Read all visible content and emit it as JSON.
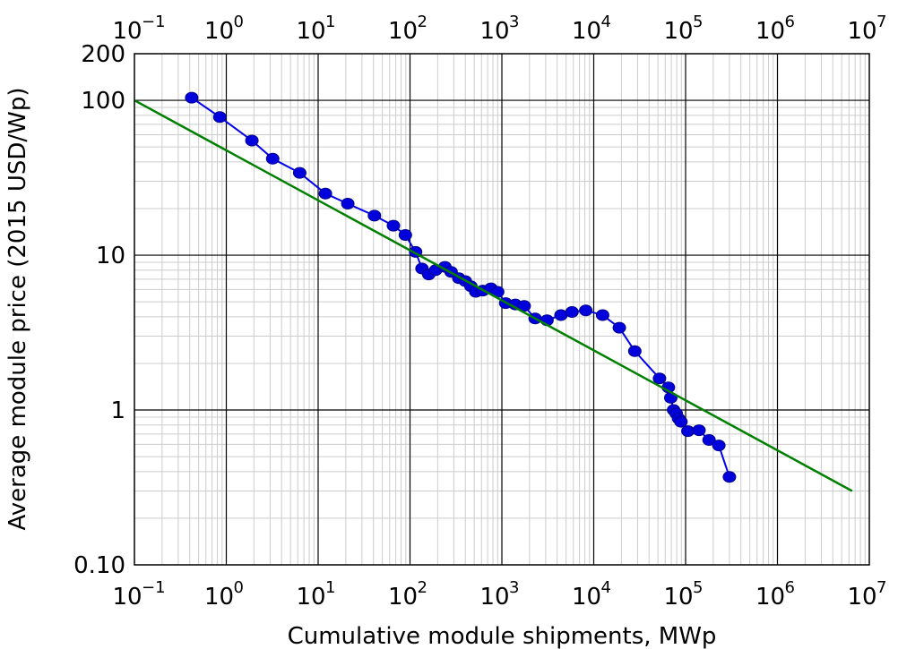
{
  "chart_data": {
    "type": "scatter",
    "title": "",
    "xlabel": "Cumulative module shipments, MWp",
    "ylabel": "Average module price (2015 USD/Wp)",
    "x_scale": "log",
    "y_scale": "log",
    "xlim": [
      0.1,
      10000000
    ],
    "ylim": [
      0.1,
      200
    ],
    "x_tick_exponents": [
      "−1",
      "0",
      "1",
      "2",
      "3",
      "4",
      "5",
      "6",
      "7"
    ],
    "x_tick_values": [
      0.1,
      1,
      10,
      100,
      1000,
      10000,
      100000,
      1000000,
      10000000
    ],
    "y_ticks": [
      {
        "value": 0.1,
        "label": "0.10"
      },
      {
        "value": 1,
        "label": "1"
      },
      {
        "value": 10,
        "label": "10"
      },
      {
        "value": 100,
        "label": "100"
      },
      {
        "value": 200,
        "label": "200"
      }
    ],
    "grid": true,
    "legend": "none",
    "series": [
      {
        "kind": "line+markers",
        "color": "#0000ee",
        "marker_color": "#0000dd",
        "x": [
          0.42,
          0.85,
          1.9,
          3.2,
          6.3,
          12,
          21,
          41,
          66,
          89,
          115,
          135,
          160,
          190,
          240,
          280,
          340,
          400,
          460,
          520,
          620,
          760,
          900,
          1100,
          1400,
          1750,
          2300,
          3100,
          4400,
          5800,
          8200,
          12500,
          19000,
          28000,
          52000,
          65000,
          69000,
          74000,
          79000,
          84000,
          89000,
          106000,
          140000,
          180000,
          230000,
          300000
        ],
        "y": [
          104,
          78,
          55,
          42,
          34,
          25,
          21.5,
          18,
          15.5,
          13.5,
          10.5,
          8.2,
          7.5,
          8,
          8.4,
          7.8,
          7.1,
          6.8,
          6.3,
          5.8,
          5.9,
          6.1,
          5.8,
          4.9,
          4.8,
          4.7,
          3.9,
          3.8,
          4.1,
          4.3,
          4.4,
          4.1,
          3.4,
          2.4,
          1.6,
          1.4,
          1.2,
          1.0,
          0.95,
          0.88,
          0.84,
          0.73,
          0.74,
          0.64,
          0.59,
          0.37
        ]
      },
      {
        "kind": "line",
        "color": "#008000",
        "x": [
          0.1,
          6500000
        ],
        "y": [
          100,
          0.3
        ]
      }
    ]
  }
}
